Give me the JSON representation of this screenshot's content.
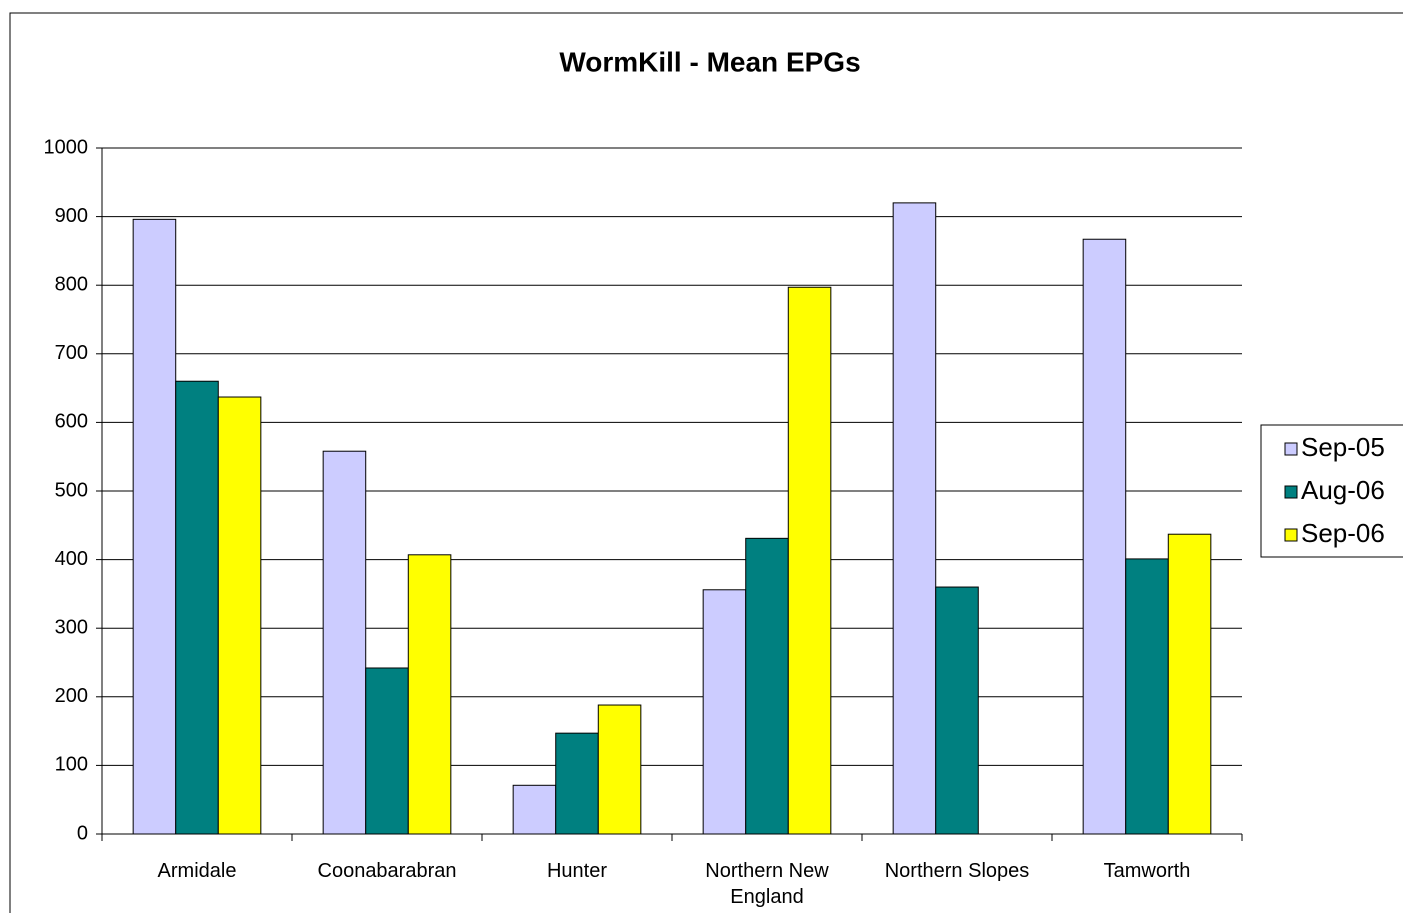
{
  "chart_data": {
    "type": "bar",
    "title": "WormKill - Mean EPGs",
    "categories": [
      "Armidale",
      "Coonabarabran",
      "Hunter",
      "Northern New England",
      "Northern Slopes",
      "Tamworth"
    ],
    "series": [
      {
        "name": "Sep-05",
        "color": "#ccccff",
        "values": [
          896,
          558,
          71,
          356,
          920,
          867
        ]
      },
      {
        "name": "Aug-06",
        "color": "#008080",
        "values": [
          660,
          242,
          147,
          431,
          360,
          401
        ]
      },
      {
        "name": "Sep-06",
        "color": "#ffff00",
        "values": [
          637,
          407,
          188,
          797,
          null,
          437
        ]
      }
    ],
    "ylim": [
      0,
      1000
    ],
    "yticks": [
      0,
      100,
      200,
      300,
      400,
      500,
      600,
      700,
      800,
      900,
      1000
    ],
    "grid": true,
    "legend": "right"
  }
}
